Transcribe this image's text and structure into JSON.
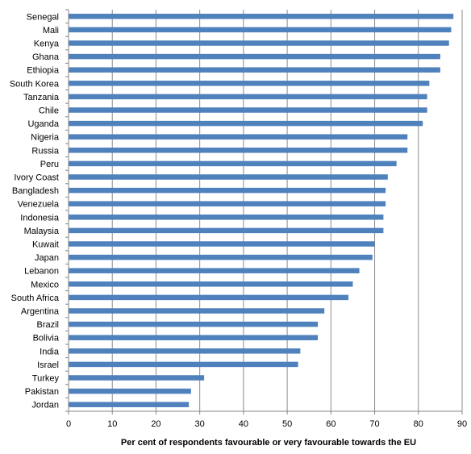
{
  "chart_data": {
    "type": "bar",
    "orientation": "horizontal",
    "title": "",
    "xlabel": "Per cent of respondents favourable  or very favourable  towards the EU",
    "ylabel": "",
    "xlim": [
      0,
      90
    ],
    "xticks": [
      0,
      10,
      20,
      30,
      40,
      50,
      60,
      70,
      80,
      90
    ],
    "grid": "vertical gridlines",
    "legend": "none",
    "bar_color": "#4f81bd",
    "categories": [
      "Senegal",
      "Mali",
      "Kenya",
      "Ghana",
      "Ethiopia",
      "South Korea",
      "Tanzania",
      "Chile",
      "Uganda",
      "Nigeria",
      "Russia",
      "Peru",
      "Ivory Coast",
      "Bangladesh",
      "Venezuela",
      "Indonesia",
      "Malaysia",
      "Kuwait",
      "Japan",
      "Lebanon",
      "Mexico",
      "South Africa",
      "Argentina",
      "Brazil",
      "Bolivia",
      "India",
      "Israel",
      "Turkey",
      "Pakistan",
      "Jordan"
    ],
    "values": [
      88,
      87.5,
      87,
      85,
      85,
      82.5,
      82,
      82,
      81,
      77.5,
      77.5,
      75,
      73,
      72.5,
      72.5,
      72,
      72,
      70,
      69.5,
      66.5,
      65,
      64,
      58.5,
      57,
      57,
      53,
      52.5,
      31,
      28,
      27.5
    ]
  }
}
